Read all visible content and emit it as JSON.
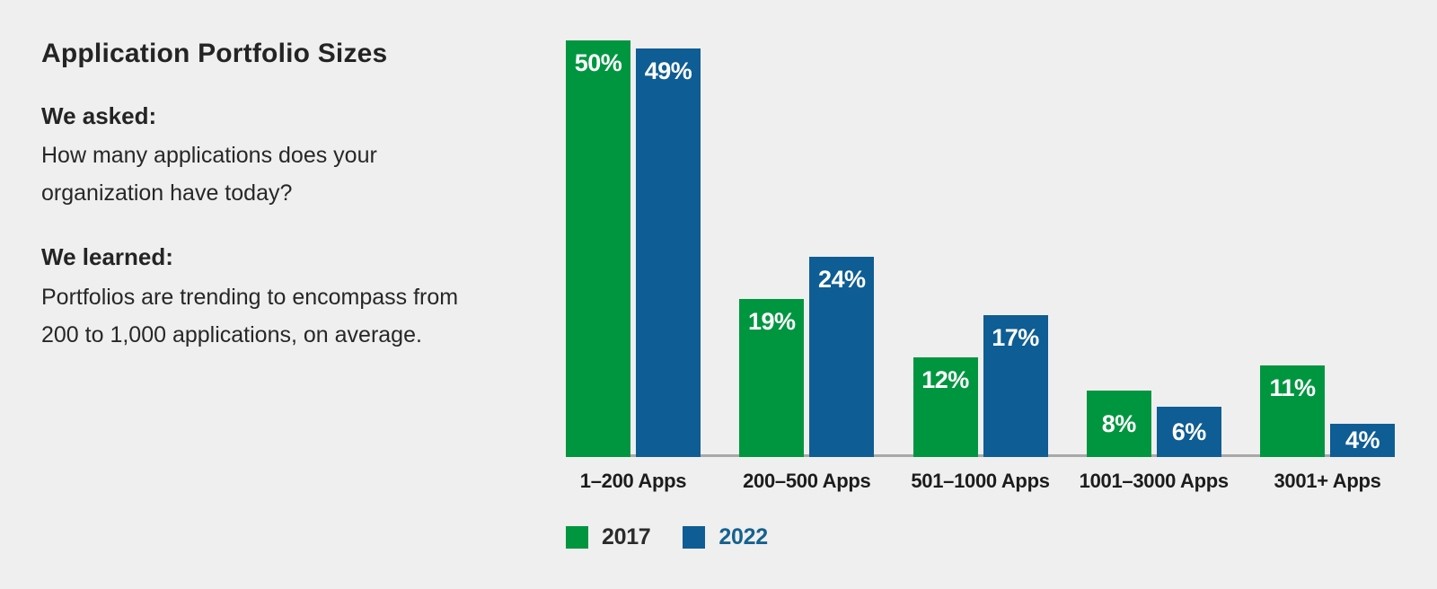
{
  "background": "#efefef",
  "panel": {
    "title": "Application Portfolio Sizes",
    "asked_heading": "We asked:",
    "asked_text": "How many applications does your organization have today?",
    "learned_heading": "We learned:",
    "learned_text": "Portfolios are trending to encompass from 200 to 1,000 applications, on average."
  },
  "chart_data": {
    "type": "bar",
    "title": "Application Portfolio Sizes",
    "categories": [
      "1–200 Apps",
      "200–500 Apps",
      "501–1000 Apps",
      "1001–3000 Apps",
      "3001+ Apps"
    ],
    "series": [
      {
        "name": "2017",
        "color": "#009640",
        "legend_text_color": "#2b2b2b",
        "values": [
          50,
          19,
          12,
          8,
          11
        ]
      },
      {
        "name": "2022",
        "color": "#0e5d94",
        "legend_text_color": "#15618f",
        "values": [
          49,
          24,
          17,
          6,
          4
        ]
      }
    ],
    "value_suffix": "%",
    "ylim": [
      0,
      50
    ],
    "grid": false,
    "legend_position": "bottom",
    "axis_line_color": "#a8a8a8"
  }
}
